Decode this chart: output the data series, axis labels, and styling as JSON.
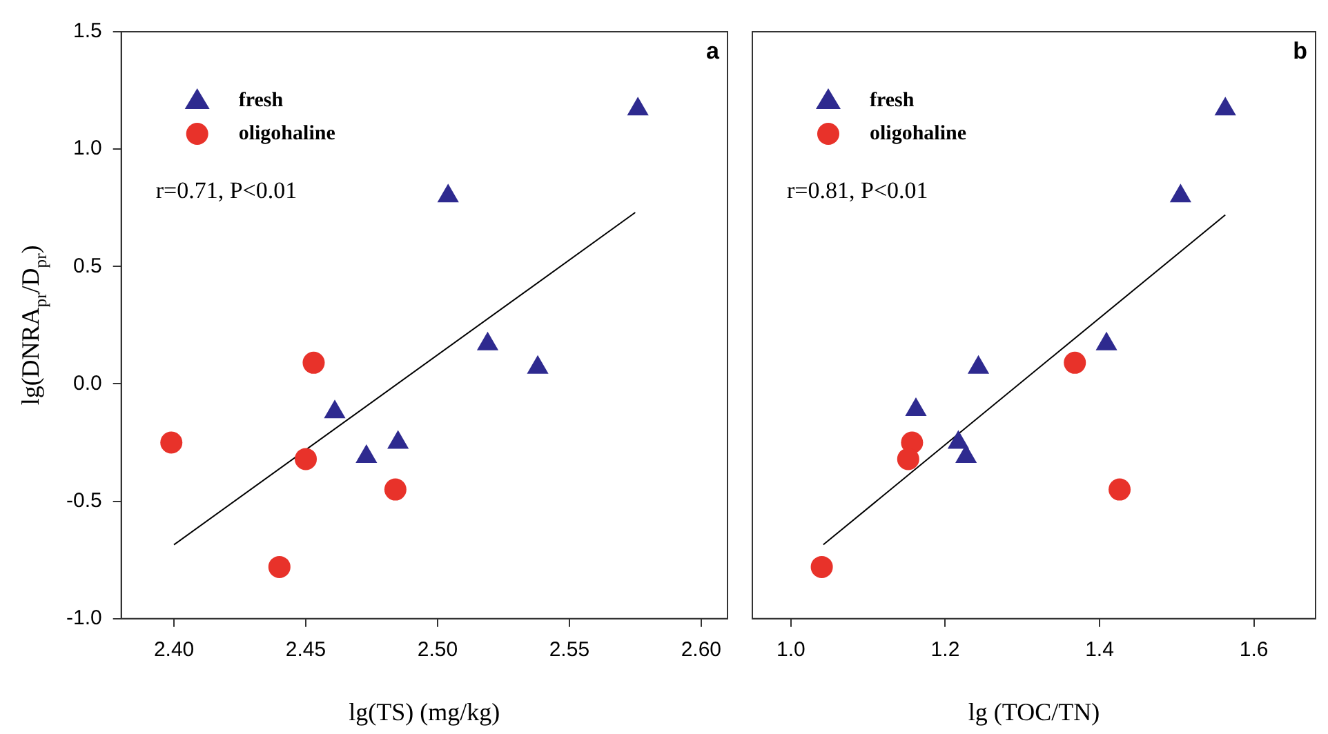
{
  "chart_data": [
    {
      "type": "scatter",
      "xlabel": "lg(TS) (mg/kg)",
      "ylabel": "lg(DNRA$_{pr}$/D$_{pr}$)",
      "annotations": [
        "a",
        "r=0.71, P<0.01"
      ],
      "legend": "top left",
      "grid": false,
      "xlim": [
        2.38,
        2.61
      ],
      "xticks": [
        {
          "value": 2.4,
          "label": "2.40"
        },
        {
          "value": 2.45,
          "label": "2.45"
        },
        {
          "value": 2.5,
          "label": "2.50"
        },
        {
          "value": 2.55,
          "label": "2.55"
        },
        {
          "value": 2.6,
          "label": "2.60"
        }
      ],
      "ylim": [
        -1.0,
        1.5
      ],
      "yticks": [
        {
          "value": -1,
          "label": "-1.0"
        },
        {
          "value": -0.5,
          "label": "-0.5"
        },
        {
          "value": 0,
          "label": "0.0"
        },
        {
          "value": 0.5,
          "label": "0.5"
        },
        {
          "value": 1,
          "label": "1.0"
        },
        {
          "value": 1.5,
          "label": "1.5"
        }
      ],
      "series": [
        {
          "name": "fresh",
          "color": "#2e2a8f",
          "marker": "triangle",
          "x": [
            2.576,
            2.504,
            2.519,
            2.538,
            2.461,
            2.485,
            2.473
          ],
          "values": [
            1.17,
            0.8,
            0.17,
            0.07,
            -0.12,
            -0.25,
            -0.31
          ]
        },
        {
          "name": "oligohaline",
          "color": "#e8322a",
          "marker": "circle",
          "x": [
            2.453,
            2.399,
            2.45,
            2.484,
            2.44
          ],
          "values": [
            0.09,
            -0.25,
            -0.32,
            -0.45,
            -0.78
          ]
        },
        {
          "type": "line",
          "color": "#000000",
          "marker": "none",
          "x": [
            2.4,
            2.575
          ],
          "values": [
            -0.685,
            0.73
          ]
        }
      ]
    },
    {
      "type": "scatter",
      "xlabel": "lg (TOC/TN)",
      "annotations": [
        "b",
        "r=0.81, P<0.01"
      ],
      "legend": "top left",
      "grid": false,
      "tick_labels": "x",
      "xlim": [
        0.95,
        1.68
      ],
      "xticks": [
        {
          "value": 1,
          "label": "1.0"
        },
        {
          "value": 1.2,
          "label": "1.2"
        },
        {
          "value": 1.4,
          "label": "1.4"
        },
        {
          "value": 1.6,
          "label": "1.6"
        }
      ],
      "ylim": [
        -1.0,
        1.5
      ],
      "series": [
        {
          "name": "fresh",
          "color": "#2e2a8f",
          "marker": "triangle",
          "x": [
            1.563,
            1.505,
            1.409,
            1.243,
            1.162,
            1.217,
            1.227
          ],
          "values": [
            1.17,
            0.8,
            0.17,
            0.07,
            -0.11,
            -0.25,
            -0.31
          ]
        },
        {
          "name": "oligohaline",
          "color": "#e8322a",
          "marker": "circle",
          "x": [
            1.368,
            1.157,
            1.152,
            1.426,
            1.04
          ],
          "values": [
            0.09,
            -0.25,
            -0.32,
            -0.45,
            -0.78
          ]
        },
        {
          "type": "line",
          "color": "#000000",
          "marker": "none",
          "x": [
            1.042,
            1.563
          ],
          "values": [
            -0.685,
            0.72
          ]
        }
      ]
    }
  ]
}
